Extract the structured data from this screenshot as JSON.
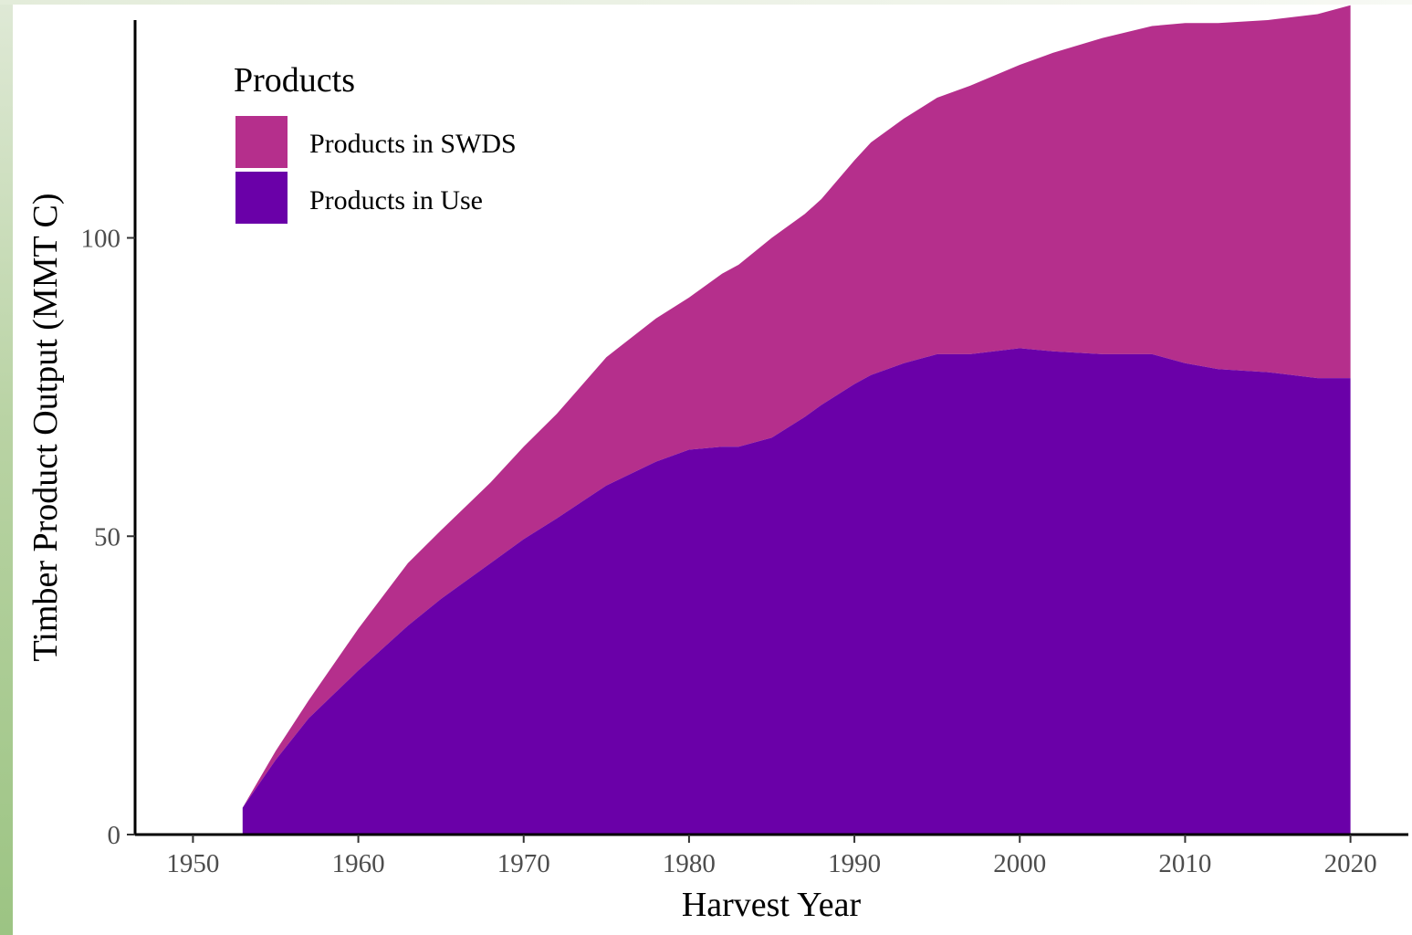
{
  "chart_data": {
    "type": "area",
    "stacked": true,
    "xlabel": "Harvest Year",
    "ylabel": "Timber Product Output (MMT C)",
    "xlim": [
      1946.5,
      2023.5
    ],
    "ylim": [
      0,
      136.5
    ],
    "xticks": [
      1950,
      1960,
      1970,
      1980,
      1990,
      2000,
      2010,
      2020
    ],
    "yticks": [
      0,
      50,
      100
    ],
    "grid": false,
    "legend": {
      "title": "Products",
      "position": "top-left",
      "entries": [
        "Products in SWDS",
        "Products in Use"
      ]
    },
    "x": [
      1953,
      1955,
      1957,
      1960,
      1963,
      1965,
      1968,
      1970,
      1972,
      1975,
      1978,
      1980,
      1982,
      1983,
      1985,
      1987,
      1988,
      1990,
      1991,
      1993,
      1995,
      1997,
      2000,
      2002,
      2005,
      2008,
      2010,
      2012,
      2015,
      2018,
      2020
    ],
    "series": [
      {
        "name": "Products in Use",
        "color": "#6a00a8",
        "values": [
          4.5,
          12.5,
          19.5,
          27.5,
          35.0,
          39.5,
          45.5,
          49.5,
          53.0,
          58.5,
          62.5,
          64.5,
          65.0,
          65.0,
          66.5,
          70.0,
          72.0,
          75.5,
          77.0,
          79.0,
          80.5,
          80.5,
          81.5,
          81.0,
          80.5,
          80.5,
          79.0,
          78.0,
          77.5,
          76.5,
          76.5
        ]
      },
      {
        "name": "Products in SWDS",
        "color": "#b52f8c",
        "values": [
          0.0,
          1.5,
          3.0,
          7.0,
          10.5,
          11.5,
          13.5,
          15.5,
          17.5,
          21.5,
          24.0,
          25.5,
          29.0,
          30.5,
          33.5,
          34.0,
          34.5,
          37.5,
          39.0,
          41.0,
          43.0,
          45.0,
          47.5,
          50.0,
          53.0,
          55.0,
          57.0,
          58.0,
          59.0,
          61.0,
          62.5
        ]
      }
    ]
  }
}
